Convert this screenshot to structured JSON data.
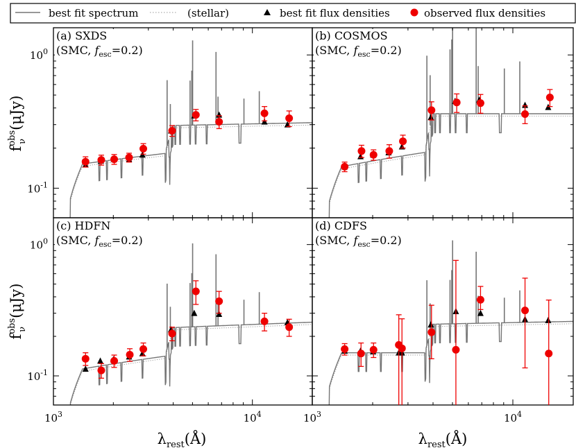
{
  "legend": {
    "items": [
      {
        "label": "best fit spectrum",
        "style": "solid-line"
      },
      {
        "label": "(stellar)",
        "style": "dotted-line"
      },
      {
        "label": "best fit flux densities",
        "style": "triangle"
      },
      {
        "label": "observed flux densities",
        "style": "circle-errorbar"
      }
    ]
  },
  "axes": {
    "xlabel_main": "λ",
    "xlabel_sub": "rest",
    "xlabel_unit": "(Å)",
    "ylabel_main": "f",
    "ylabel_sup": "obs",
    "ylabel_sub": "ν",
    "ylabel_unit": "(μJy)",
    "x_tick_base": "10",
    "x_tick_exp": [
      "3",
      "4"
    ],
    "y_tick_labels": [
      "10",
      "10"
    ],
    "y_tick_exp": [
      "0",
      "-1"
    ]
  },
  "colors": {
    "spectrum": "#757575",
    "stellar": "#9a9a9a",
    "model": "#000000",
    "observed": "#ee0000"
  },
  "chart_data": [
    {
      "type": "scatter",
      "title": "(a) SXDS",
      "subtitle_model": "(SMC, ",
      "subtitle_f": "f",
      "subtitle_sub": "esc",
      "subtitle_value": "=0.2)",
      "xscale": "log",
      "yscale": "log",
      "xlim": [
        1000,
        20000
      ],
      "ylim": [
        0.06,
        1.6
      ],
      "model_x": [
        1450,
        1730,
        2010,
        2400,
        2800,
        3900,
        5100,
        6800,
        11500,
        15000
      ],
      "model_y": [
        0.15,
        0.16,
        0.165,
        0.165,
        0.178,
        0.27,
        0.35,
        0.355,
        0.315,
        0.3
      ],
      "obs_x": [
        1450,
        1740,
        2020,
        2400,
        2830,
        3950,
        5200,
        6800,
        11500,
        15300
      ],
      "obs_y": [
        0.158,
        0.163,
        0.165,
        0.17,
        0.198,
        0.27,
        0.355,
        0.315,
        0.365,
        0.335
      ],
      "obs_err": [
        0.014,
        0.014,
        0.014,
        0.013,
        0.018,
        0.025,
        0.035,
        0.035,
        0.045,
        0.045
      ]
    },
    {
      "type": "scatter",
      "title": "(b) COSMOS",
      "subtitle_model": "(SMC, ",
      "subtitle_f": "f",
      "subtitle_sub": "esc",
      "subtitle_value": "=0.2)",
      "xscale": "log",
      "yscale": "log",
      "xlim": [
        1000,
        20000
      ],
      "ylim": [
        0.06,
        1.6
      ],
      "model_x": [
        1450,
        1740,
        2010,
        2400,
        2800,
        3900,
        5150,
        6800,
        11500,
        15000
      ],
      "model_y": [
        0.145,
        0.173,
        0.178,
        0.185,
        0.205,
        0.34,
        0.45,
        0.46,
        0.42,
        0.405
      ],
      "obs_x": [
        1450,
        1760,
        2020,
        2420,
        2830,
        3930,
        5250,
        6900,
        11500,
        15300
      ],
      "obs_y": [
        0.145,
        0.19,
        0.178,
        0.19,
        0.225,
        0.385,
        0.44,
        0.435,
        0.36,
        0.48
      ],
      "obs_err": [
        0.012,
        0.02,
        0.016,
        0.022,
        0.025,
        0.06,
        0.07,
        0.07,
        0.055,
        0.07
      ]
    },
    {
      "type": "scatter",
      "title": "(c) HDFN",
      "subtitle_model": "(SMC, ",
      "subtitle_f": "f",
      "subtitle_sub": "esc",
      "subtitle_value": "=0.2)",
      "xscale": "log",
      "yscale": "log",
      "xlim": [
        1000,
        20000
      ],
      "ylim": [
        0.06,
        1.6
      ],
      "model_x": [
        1450,
        1720,
        2000,
        2400,
        2800,
        3900,
        5100,
        6800,
        11500,
        15000
      ],
      "model_y": [
        0.113,
        0.13,
        0.133,
        0.14,
        0.148,
        0.225,
        0.3,
        0.295,
        0.26,
        0.255
      ],
      "obs_x": [
        1450,
        1740,
        2020,
        2420,
        2830,
        3950,
        5200,
        6800,
        11500,
        15300
      ],
      "obs_y": [
        0.135,
        0.11,
        0.13,
        0.145,
        0.16,
        0.21,
        0.44,
        0.37,
        0.26,
        0.235
      ],
      "obs_err": [
        0.015,
        0.014,
        0.014,
        0.016,
        0.018,
        0.025,
        0.09,
        0.07,
        0.04,
        0.035
      ]
    },
    {
      "type": "scatter",
      "title": "(d) CDFS",
      "subtitle_model": "(SMC, ",
      "subtitle_f": "f",
      "subtitle_sub": "esc",
      "subtitle_value": "=0.2)",
      "xscale": "log",
      "yscale": "log",
      "xlim": [
        1000,
        20000
      ],
      "ylim": [
        0.06,
        1.6
      ],
      "model_x": [
        1450,
        1740,
        2010,
        2700,
        2800,
        3900,
        5200,
        6900,
        11500,
        15000
      ],
      "model_y": [
        0.155,
        0.155,
        0.153,
        0.15,
        0.15,
        0.245,
        0.31,
        0.3,
        0.27,
        0.265
      ],
      "obs_x": [
        1450,
        1750,
        2020,
        2700,
        2800,
        3930,
        5200,
        6900,
        11500,
        15100
      ],
      "obs_y": [
        0.16,
        0.148,
        0.158,
        0.172,
        0.162,
        0.215,
        0.158,
        0.38,
        0.315,
        0.148
      ],
      "obs_err_low": [
        0.016,
        0.03,
        0.02,
        0.12,
        0.11,
        0.08,
        0.1,
        0.06,
        0.2,
        0.09
      ],
      "obs_err_high": [
        0.016,
        0.03,
        0.02,
        0.12,
        0.11,
        0.13,
        0.6,
        0.1,
        0.24,
        0.23
      ]
    }
  ]
}
